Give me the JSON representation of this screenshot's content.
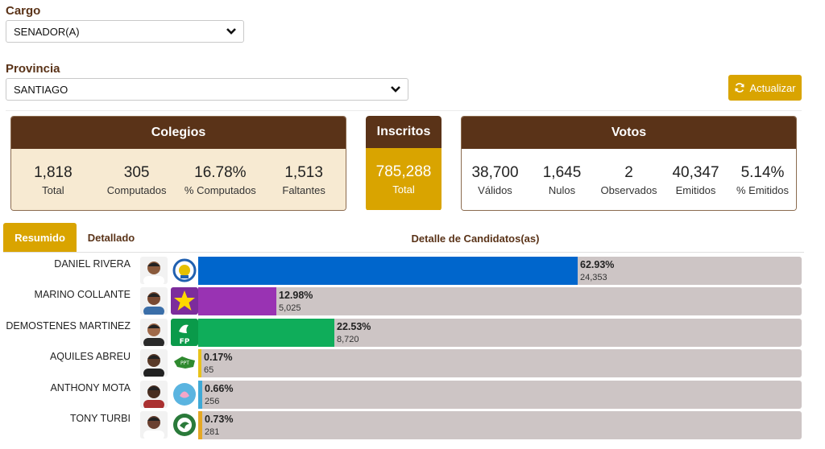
{
  "filters": {
    "cargo_label": "Cargo",
    "cargo_value": "SENADOR(A)",
    "provincia_label": "Provincia",
    "provincia_value": "SANTIAGO",
    "update_button": "Actualizar"
  },
  "colegios": {
    "title": "Colegios",
    "stats": [
      {
        "value": "1,818",
        "label": "Total"
      },
      {
        "value": "305",
        "label": "Computados"
      },
      {
        "value": "16.78%",
        "label": "% Computados"
      },
      {
        "value": "1,513",
        "label": "Faltantes"
      }
    ]
  },
  "inscritos": {
    "title": "Inscritos",
    "value": "785,288",
    "label": "Total"
  },
  "votos": {
    "title": "Votos",
    "stats": [
      {
        "value": "38,700",
        "label": "Válidos"
      },
      {
        "value": "1,645",
        "label": "Nulos"
      },
      {
        "value": "2",
        "label": "Observados"
      },
      {
        "value": "40,347",
        "label": "Emitidos"
      },
      {
        "value": "5.14%",
        "label": "% Emitidos"
      }
    ]
  },
  "tabs": {
    "resumen": "Resumido",
    "detallado": "Detallado",
    "detail_title": "Detalle de Candidatos(as)"
  },
  "candidates": [
    {
      "name": "DANIEL RIVERA",
      "percent": "62.93%",
      "votes": "24,353",
      "share": 62.93,
      "color": "#0066cc",
      "party_icon": "pld-logo"
    },
    {
      "name": "MARINO COLLANTE",
      "percent": "12.98%",
      "votes": "5,025",
      "share": 12.98,
      "color": "#9933b3",
      "party_icon": "prd-star-logo"
    },
    {
      "name": "DEMOSTENES MARTINEZ",
      "percent": "22.53%",
      "votes": "8,720",
      "share": 22.53,
      "color": "#0fad5a",
      "party_icon": "fp-logo"
    },
    {
      "name": "AQUILES ABREU",
      "percent": "0.17%",
      "votes": "65",
      "share": 0.17,
      "color": "#e8c21a",
      "party_icon": "map-party-logo"
    },
    {
      "name": "ANTHONY MOTA",
      "percent": "0.66%",
      "votes": "256",
      "share": 0.66,
      "color": "#3fa9d6",
      "party_icon": "blue-party-logo"
    },
    {
      "name": "TONY TURBI",
      "percent": "0.73%",
      "votes": "281",
      "share": 0.73,
      "color": "#e5a825",
      "party_icon": "dove-party-logo"
    }
  ]
}
